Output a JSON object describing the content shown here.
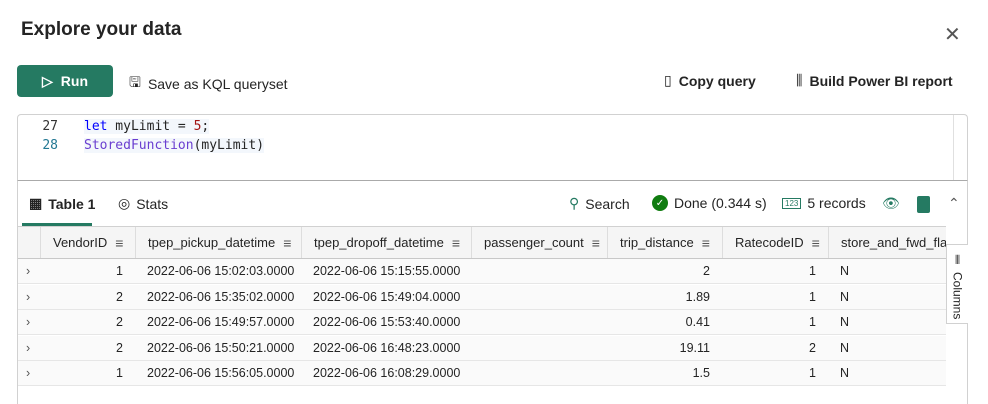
{
  "dialog": {
    "title": "Explore your data",
    "close_icon": "close-icon"
  },
  "toolbar": {
    "run_label": "Run",
    "save_label": "Save as KQL queryset",
    "copy_label": "Copy query",
    "powerbi_label": "Build Power BI report",
    "accent": "#257a62"
  },
  "editor": {
    "lines": [
      {
        "number": "27",
        "kw": "let",
        "rest": " myLimit = ",
        "num": "5",
        "end": ";"
      },
      {
        "number": "28",
        "fn": "StoredFunction",
        "rest": "(myLimit)"
      }
    ]
  },
  "results": {
    "tabs": [
      {
        "label": "Table 1",
        "active": true
      },
      {
        "label": "Stats",
        "active": false
      }
    ],
    "search_label": "Search",
    "status": "Done (0.344 s)",
    "records": "5 records",
    "columns_label": "Columns"
  },
  "table": {
    "columns": [
      "VendorID",
      "tpep_pickup_datetime",
      "tpep_dropoff_datetime",
      "passenger_count",
      "trip_distance",
      "RatecodeID",
      "store_and_fwd_flag"
    ],
    "rows": [
      [
        "1",
        "2022-06-06 15:02:03.0000",
        "2022-06-06 15:15:55.0000",
        "",
        "2",
        "1",
        "N"
      ],
      [
        "2",
        "2022-06-06 15:35:02.0000",
        "2022-06-06 15:49:04.0000",
        "",
        "1.89",
        "1",
        "N"
      ],
      [
        "2",
        "2022-06-06 15:49:57.0000",
        "2022-06-06 15:53:40.0000",
        "",
        "0.41",
        "1",
        "N"
      ],
      [
        "2",
        "2022-06-06 15:50:21.0000",
        "2022-06-06 16:48:23.0000",
        "",
        "19.11",
        "2",
        "N"
      ],
      [
        "1",
        "2022-06-06 15:56:05.0000",
        "2022-06-06 16:08:29.0000",
        "",
        "1.5",
        "1",
        "N"
      ]
    ]
  }
}
